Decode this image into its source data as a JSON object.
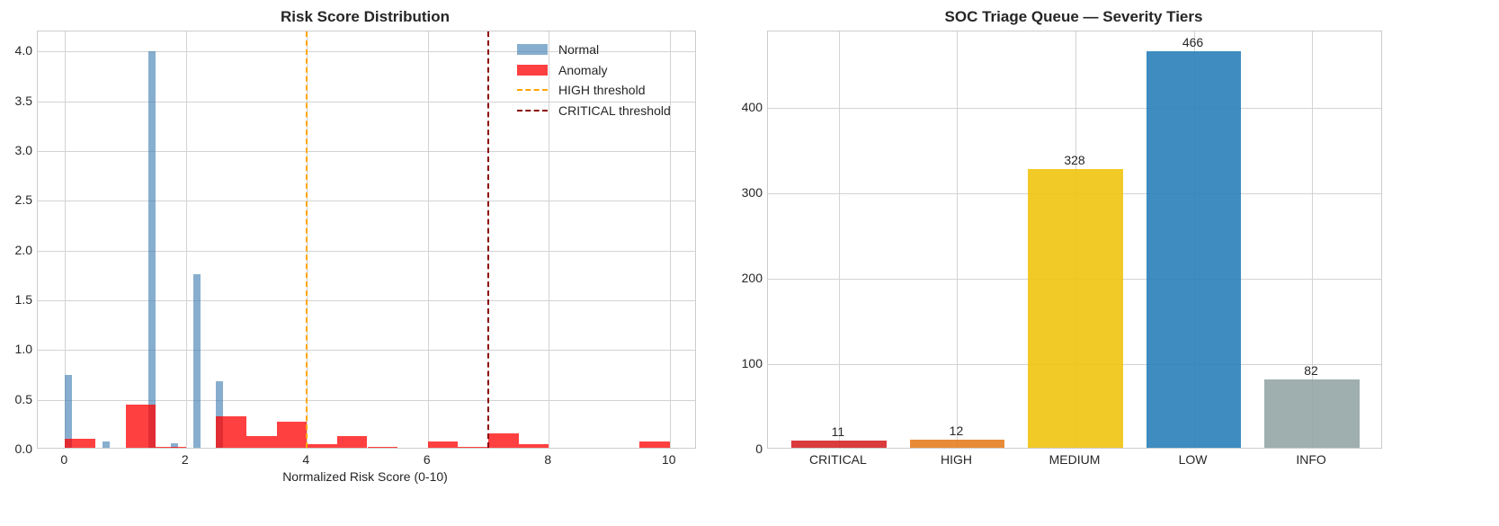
{
  "left_chart": {
    "title": "Risk Score Distribution",
    "xlabel": "Normalized Risk Score (0-10)",
    "x_ticks": [
      "0",
      "2",
      "4",
      "6",
      "8",
      "10"
    ],
    "y_ticks": [
      "0.0",
      "0.5",
      "1.0",
      "1.5",
      "2.0",
      "2.5",
      "3.0",
      "3.5",
      "4.0"
    ],
    "legend": [
      {
        "label": "Normal",
        "type": "patch",
        "color": "#4682b4"
      },
      {
        "label": "Anomaly",
        "type": "patch",
        "color": "#ff0000"
      },
      {
        "label": "HIGH threshold",
        "type": "dashed-line",
        "color": "#ffa500"
      },
      {
        "label": "CRITICAL threshold",
        "type": "dashed-line",
        "color": "#8b0000"
      }
    ]
  },
  "right_chart": {
    "title": "SOC Triage Queue — Severity Tiers",
    "y_ticks": [
      "0",
      "100",
      "200",
      "300",
      "400"
    ],
    "categories": [
      "CRITICAL",
      "HIGH",
      "MEDIUM",
      "LOW",
      "INFO"
    ],
    "values": [
      "11",
      "12",
      "328",
      "466",
      "82"
    ]
  },
  "chart_data": [
    {
      "type": "bar",
      "subtype": "histogram (density, overlaid)",
      "title": "Risk Score Distribution",
      "xlabel": "Normalized Risk Score (0-10)",
      "ylabel": "",
      "xlim": [
        -0.45,
        10.45
      ],
      "ylim": [
        0,
        4.2
      ],
      "grid": true,
      "legend_position": "upper right",
      "series": [
        {
          "name": "Normal",
          "color": "#4682b4",
          "alpha": 0.65,
          "bins": [
            {
              "x0": 0.0,
              "x1": 0.12,
              "density": 0.75
            },
            {
              "x0": 0.62,
              "x1": 0.74,
              "density": 0.08
            },
            {
              "x0": 1.38,
              "x1": 1.5,
              "density": 4.0
            },
            {
              "x0": 1.75,
              "x1": 1.87,
              "density": 0.06
            },
            {
              "x0": 2.12,
              "x1": 2.24,
              "density": 1.76
            },
            {
              "x0": 2.5,
              "x1": 2.62,
              "density": 0.69
            }
          ]
        },
        {
          "name": "Anomaly",
          "color": "#ff0000",
          "alpha": 0.75,
          "bins": [
            {
              "x0": 0.0,
              "x1": 0.5,
              "density": 0.11
            },
            {
              "x0": 1.0,
              "x1": 1.5,
              "density": 0.45
            },
            {
              "x0": 1.5,
              "x1": 2.0,
              "density": 0.03
            },
            {
              "x0": 2.5,
              "x1": 3.0,
              "density": 0.33
            },
            {
              "x0": 3.0,
              "x1": 3.5,
              "density": 0.14
            },
            {
              "x0": 3.5,
              "x1": 4.0,
              "density": 0.28
            },
            {
              "x0": 4.0,
              "x1": 4.5,
              "density": 0.05
            },
            {
              "x0": 4.5,
              "x1": 5.0,
              "density": 0.14
            },
            {
              "x0": 5.0,
              "x1": 5.5,
              "density": 0.03
            },
            {
              "x0": 6.0,
              "x1": 6.5,
              "density": 0.08
            },
            {
              "x0": 6.5,
              "x1": 7.0,
              "density": 0.03
            },
            {
              "x0": 7.0,
              "x1": 7.5,
              "density": 0.16
            },
            {
              "x0": 7.5,
              "x1": 8.0,
              "density": 0.05
            },
            {
              "x0": 9.5,
              "x1": 10.0,
              "density": 0.08
            }
          ]
        }
      ],
      "annotations": [
        {
          "type": "vline",
          "x": 4,
          "label": "HIGH threshold",
          "color": "#ffa500",
          "style": "dashed"
        },
        {
          "type": "vline",
          "x": 7,
          "label": "CRITICAL threshold",
          "color": "#8b0000",
          "style": "dashed"
        }
      ]
    },
    {
      "type": "bar",
      "title": "SOC Triage Queue — Severity Tiers",
      "xlabel": "",
      "ylabel": "",
      "categories": [
        "CRITICAL",
        "HIGH",
        "MEDIUM",
        "LOW",
        "INFO"
      ],
      "values": [
        11,
        12,
        328,
        466,
        82
      ],
      "colors": [
        "#d62728",
        "#e67e22",
        "#f1c40f",
        "#2980b9",
        "#95a5a6"
      ],
      "ylim": [
        0,
        489
      ],
      "grid": true,
      "data_labels": true
    }
  ]
}
